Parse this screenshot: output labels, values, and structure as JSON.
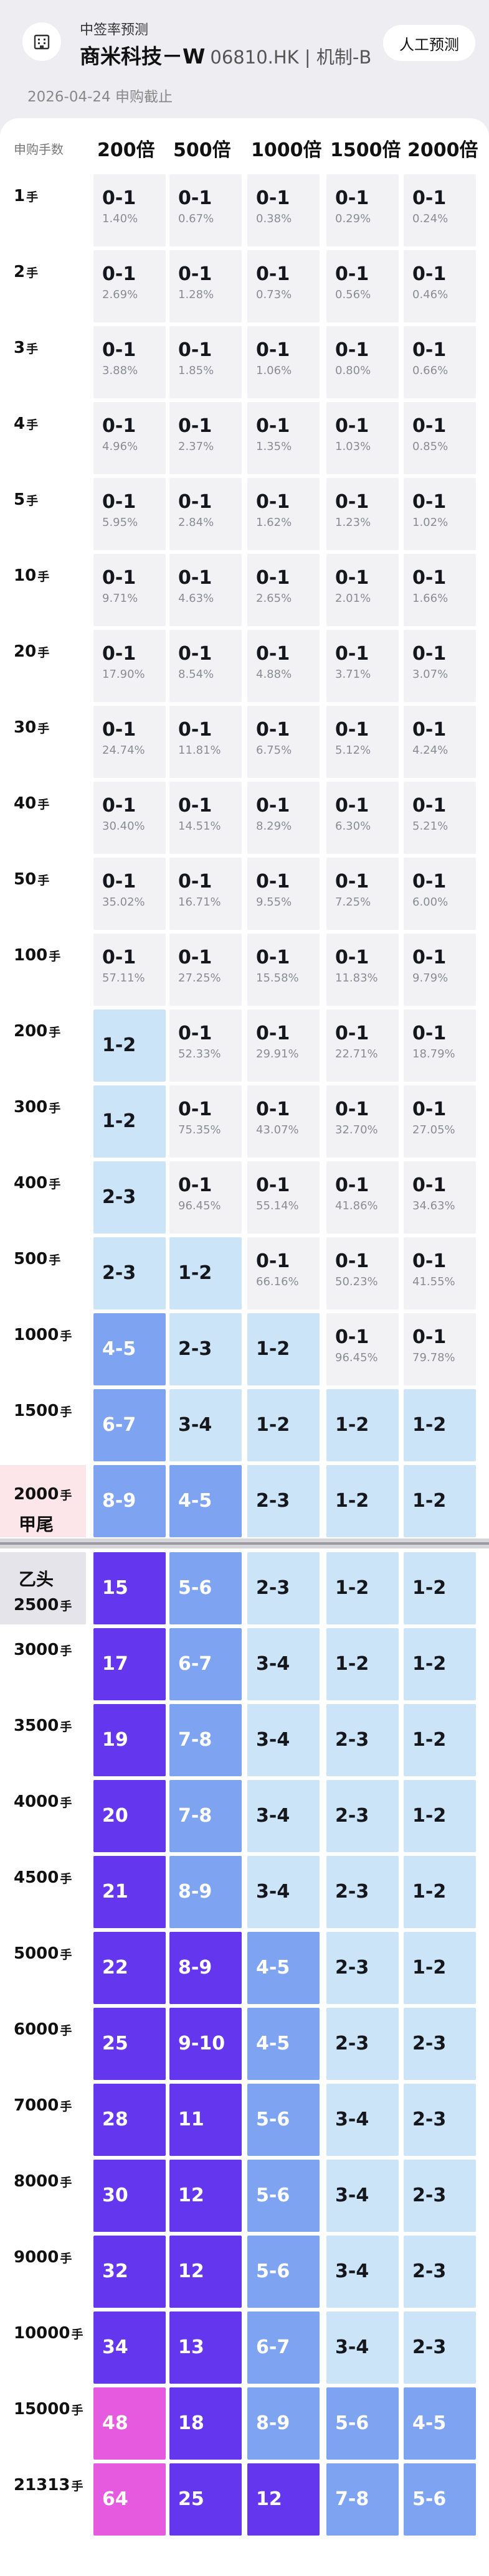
{
  "header": {
    "feature_name": "中签率预测",
    "stock_name": "商米科技－W",
    "stock_code": "06810.HK | 机制-B",
    "manual_button": "人工预测",
    "deadline": "2026-04-24 申购截止"
  },
  "table": {
    "corner_label": "申购手数",
    "multipliers": [
      "200倍",
      "500倍",
      "1000倍",
      "1500倍",
      "2000倍"
    ],
    "unit": "手",
    "group_a_tail": "甲尾",
    "group_b_head": "乙头",
    "rows": [
      {
        "lots": "1",
        "cells": [
          {
            "a": "0-1",
            "r": "1.40%"
          },
          {
            "a": "0-1",
            "r": "0.67%"
          },
          {
            "a": "0-1",
            "r": "0.38%"
          },
          {
            "a": "0-1",
            "r": "0.29%"
          },
          {
            "a": "0-1",
            "r": "0.24%"
          }
        ]
      },
      {
        "lots": "2",
        "cells": [
          {
            "a": "0-1",
            "r": "2.69%"
          },
          {
            "a": "0-1",
            "r": "1.28%"
          },
          {
            "a": "0-1",
            "r": "0.73%"
          },
          {
            "a": "0-1",
            "r": "0.56%"
          },
          {
            "a": "0-1",
            "r": "0.46%"
          }
        ]
      },
      {
        "lots": "3",
        "cells": [
          {
            "a": "0-1",
            "r": "3.88%"
          },
          {
            "a": "0-1",
            "r": "1.85%"
          },
          {
            "a": "0-1",
            "r": "1.06%"
          },
          {
            "a": "0-1",
            "r": "0.80%"
          },
          {
            "a": "0-1",
            "r": "0.66%"
          }
        ]
      },
      {
        "lots": "4",
        "cells": [
          {
            "a": "0-1",
            "r": "4.96%"
          },
          {
            "a": "0-1",
            "r": "2.37%"
          },
          {
            "a": "0-1",
            "r": "1.35%"
          },
          {
            "a": "0-1",
            "r": "1.03%"
          },
          {
            "a": "0-1",
            "r": "0.85%"
          }
        ]
      },
      {
        "lots": "5",
        "cells": [
          {
            "a": "0-1",
            "r": "5.95%"
          },
          {
            "a": "0-1",
            "r": "2.84%"
          },
          {
            "a": "0-1",
            "r": "1.62%"
          },
          {
            "a": "0-1",
            "r": "1.23%"
          },
          {
            "a": "0-1",
            "r": "1.02%"
          }
        ]
      },
      {
        "lots": "10",
        "cells": [
          {
            "a": "0-1",
            "r": "9.71%"
          },
          {
            "a": "0-1",
            "r": "4.63%"
          },
          {
            "a": "0-1",
            "r": "2.65%"
          },
          {
            "a": "0-1",
            "r": "2.01%"
          },
          {
            "a": "0-1",
            "r": "1.66%"
          }
        ]
      },
      {
        "lots": "20",
        "cells": [
          {
            "a": "0-1",
            "r": "17.90%"
          },
          {
            "a": "0-1",
            "r": "8.54%"
          },
          {
            "a": "0-1",
            "r": "4.88%"
          },
          {
            "a": "0-1",
            "r": "3.71%"
          },
          {
            "a": "0-1",
            "r": "3.07%"
          }
        ]
      },
      {
        "lots": "30",
        "cells": [
          {
            "a": "0-1",
            "r": "24.74%"
          },
          {
            "a": "0-1",
            "r": "11.81%"
          },
          {
            "a": "0-1",
            "r": "6.75%"
          },
          {
            "a": "0-1",
            "r": "5.12%"
          },
          {
            "a": "0-1",
            "r": "4.24%"
          }
        ]
      },
      {
        "lots": "40",
        "cells": [
          {
            "a": "0-1",
            "r": "30.40%"
          },
          {
            "a": "0-1",
            "r": "14.51%"
          },
          {
            "a": "0-1",
            "r": "8.29%"
          },
          {
            "a": "0-1",
            "r": "6.30%"
          },
          {
            "a": "0-1",
            "r": "5.21%"
          }
        ]
      },
      {
        "lots": "50",
        "cells": [
          {
            "a": "0-1",
            "r": "35.02%"
          },
          {
            "a": "0-1",
            "r": "16.71%"
          },
          {
            "a": "0-1",
            "r": "9.55%"
          },
          {
            "a": "0-1",
            "r": "7.25%"
          },
          {
            "a": "0-1",
            "r": "6.00%"
          }
        ]
      },
      {
        "lots": "100",
        "cells": [
          {
            "a": "0-1",
            "r": "57.11%"
          },
          {
            "a": "0-1",
            "r": "27.25%"
          },
          {
            "a": "0-1",
            "r": "15.58%"
          },
          {
            "a": "0-1",
            "r": "11.83%"
          },
          {
            "a": "0-1",
            "r": "9.79%"
          }
        ]
      },
      {
        "lots": "200",
        "cells": [
          {
            "a": "1-2",
            "r": ""
          },
          {
            "a": "0-1",
            "r": "52.33%"
          },
          {
            "a": "0-1",
            "r": "29.91%"
          },
          {
            "a": "0-1",
            "r": "22.71%"
          },
          {
            "a": "0-1",
            "r": "18.79%"
          }
        ]
      },
      {
        "lots": "300",
        "cells": [
          {
            "a": "1-2",
            "r": ""
          },
          {
            "a": "0-1",
            "r": "75.35%"
          },
          {
            "a": "0-1",
            "r": "43.07%"
          },
          {
            "a": "0-1",
            "r": "32.70%"
          },
          {
            "a": "0-1",
            "r": "27.05%"
          }
        ]
      },
      {
        "lots": "400",
        "cells": [
          {
            "a": "2-3",
            "r": ""
          },
          {
            "a": "0-1",
            "r": "96.45%"
          },
          {
            "a": "0-1",
            "r": "55.14%"
          },
          {
            "a": "0-1",
            "r": "41.86%"
          },
          {
            "a": "0-1",
            "r": "34.63%"
          }
        ]
      },
      {
        "lots": "500",
        "cells": [
          {
            "a": "2-3",
            "r": ""
          },
          {
            "a": "1-2",
            "r": ""
          },
          {
            "a": "0-1",
            "r": "66.16%"
          },
          {
            "a": "0-1",
            "r": "50.23%"
          },
          {
            "a": "0-1",
            "r": "41.55%"
          }
        ]
      },
      {
        "lots": "1000",
        "cells": [
          {
            "a": "4-5",
            "r": ""
          },
          {
            "a": "2-3",
            "r": ""
          },
          {
            "a": "1-2",
            "r": ""
          },
          {
            "a": "0-1",
            "r": "96.45%"
          },
          {
            "a": "0-1",
            "r": "79.78%"
          }
        ]
      },
      {
        "lots": "1500",
        "cells": [
          {
            "a": "6-7",
            "r": ""
          },
          {
            "a": "3-4",
            "r": ""
          },
          {
            "a": "1-2",
            "r": ""
          },
          {
            "a": "1-2",
            "r": ""
          },
          {
            "a": "1-2",
            "r": ""
          }
        ]
      },
      {
        "lots": "2000",
        "cells": [
          {
            "a": "8-9",
            "r": ""
          },
          {
            "a": "4-5",
            "r": ""
          },
          {
            "a": "2-3",
            "r": ""
          },
          {
            "a": "1-2",
            "r": ""
          },
          {
            "a": "1-2",
            "r": ""
          }
        ]
      },
      {
        "lots": "2500",
        "cells": [
          {
            "a": "15",
            "r": ""
          },
          {
            "a": "5-6",
            "r": ""
          },
          {
            "a": "2-3",
            "r": ""
          },
          {
            "a": "1-2",
            "r": ""
          },
          {
            "a": "1-2",
            "r": ""
          }
        ]
      },
      {
        "lots": "3000",
        "cells": [
          {
            "a": "17",
            "r": ""
          },
          {
            "a": "6-7",
            "r": ""
          },
          {
            "a": "3-4",
            "r": ""
          },
          {
            "a": "1-2",
            "r": ""
          },
          {
            "a": "1-2",
            "r": ""
          }
        ]
      },
      {
        "lots": "3500",
        "cells": [
          {
            "a": "19",
            "r": ""
          },
          {
            "a": "7-8",
            "r": ""
          },
          {
            "a": "3-4",
            "r": ""
          },
          {
            "a": "2-3",
            "r": ""
          },
          {
            "a": "1-2",
            "r": ""
          }
        ]
      },
      {
        "lots": "4000",
        "cells": [
          {
            "a": "20",
            "r": ""
          },
          {
            "a": "7-8",
            "r": ""
          },
          {
            "a": "3-4",
            "r": ""
          },
          {
            "a": "2-3",
            "r": ""
          },
          {
            "a": "1-2",
            "r": ""
          }
        ]
      },
      {
        "lots": "4500",
        "cells": [
          {
            "a": "21",
            "r": ""
          },
          {
            "a": "8-9",
            "r": ""
          },
          {
            "a": "3-4",
            "r": ""
          },
          {
            "a": "2-3",
            "r": ""
          },
          {
            "a": "1-2",
            "r": ""
          }
        ]
      },
      {
        "lots": "5000",
        "cells": [
          {
            "a": "22",
            "r": ""
          },
          {
            "a": "8-9",
            "r": ""
          },
          {
            "a": "4-5",
            "r": ""
          },
          {
            "a": "2-3",
            "r": ""
          },
          {
            "a": "1-2",
            "r": ""
          }
        ]
      },
      {
        "lots": "6000",
        "cells": [
          {
            "a": "25",
            "r": ""
          },
          {
            "a": "9-10",
            "r": ""
          },
          {
            "a": "4-5",
            "r": ""
          },
          {
            "a": "2-3",
            "r": ""
          },
          {
            "a": "2-3",
            "r": ""
          }
        ]
      },
      {
        "lots": "7000",
        "cells": [
          {
            "a": "28",
            "r": ""
          },
          {
            "a": "11",
            "r": ""
          },
          {
            "a": "5-6",
            "r": ""
          },
          {
            "a": "3-4",
            "r": ""
          },
          {
            "a": "2-3",
            "r": ""
          }
        ]
      },
      {
        "lots": "8000",
        "cells": [
          {
            "a": "30",
            "r": ""
          },
          {
            "a": "12",
            "r": ""
          },
          {
            "a": "5-6",
            "r": ""
          },
          {
            "a": "3-4",
            "r": ""
          },
          {
            "a": "2-3",
            "r": ""
          }
        ]
      },
      {
        "lots": "9000",
        "cells": [
          {
            "a": "32",
            "r": ""
          },
          {
            "a": "12",
            "r": ""
          },
          {
            "a": "5-6",
            "r": ""
          },
          {
            "a": "3-4",
            "r": ""
          },
          {
            "a": "2-3",
            "r": ""
          }
        ]
      },
      {
        "lots": "10000",
        "cells": [
          {
            "a": "34",
            "r": ""
          },
          {
            "a": "13",
            "r": ""
          },
          {
            "a": "6-7",
            "r": ""
          },
          {
            "a": "3-4",
            "r": ""
          },
          {
            "a": "2-3",
            "r": ""
          }
        ]
      },
      {
        "lots": "15000",
        "cells": [
          {
            "a": "48",
            "r": ""
          },
          {
            "a": "18",
            "r": ""
          },
          {
            "a": "8-9",
            "r": ""
          },
          {
            "a": "5-6",
            "r": ""
          },
          {
            "a": "4-5",
            "r": ""
          }
        ]
      },
      {
        "lots": "21313",
        "cells": [
          {
            "a": "64",
            "r": ""
          },
          {
            "a": "25",
            "r": ""
          },
          {
            "a": "12",
            "r": ""
          },
          {
            "a": "7-8",
            "r": ""
          },
          {
            "a": "5-6",
            "r": ""
          }
        ]
      }
    ]
  },
  "colors": {
    "page_bg": "#eeeef2",
    "low_prob": "#f2f2f5",
    "level_1": "#cbe4f8",
    "level_2": "#7ea4f1",
    "level_3": "#6436ee",
    "level_4": "#e65ae0",
    "group_a_tail_bg": "#fde6ea",
    "group_b_head_bg": "#e4e4ea",
    "divider": "#9a9aa3"
  },
  "cell_levels": [
    [
      0,
      0,
      0,
      0,
      0
    ],
    [
      0,
      0,
      0,
      0,
      0
    ],
    [
      0,
      0,
      0,
      0,
      0
    ],
    [
      0,
      0,
      0,
      0,
      0
    ],
    [
      0,
      0,
      0,
      0,
      0
    ],
    [
      0,
      0,
      0,
      0,
      0
    ],
    [
      0,
      0,
      0,
      0,
      0
    ],
    [
      0,
      0,
      0,
      0,
      0
    ],
    [
      0,
      0,
      0,
      0,
      0
    ],
    [
      0,
      0,
      0,
      0,
      0
    ],
    [
      0,
      0,
      0,
      0,
      0
    ],
    [
      1,
      0,
      0,
      0,
      0
    ],
    [
      1,
      0,
      0,
      0,
      0
    ],
    [
      1,
      0,
      0,
      0,
      0
    ],
    [
      1,
      1,
      0,
      0,
      0
    ],
    [
      2,
      1,
      1,
      0,
      0
    ],
    [
      2,
      1,
      1,
      1,
      1
    ],
    [
      2,
      2,
      1,
      1,
      1
    ],
    [
      3,
      2,
      1,
      1,
      1
    ],
    [
      3,
      2,
      1,
      1,
      1
    ],
    [
      3,
      2,
      1,
      1,
      1
    ],
    [
      3,
      2,
      1,
      1,
      1
    ],
    [
      3,
      2,
      1,
      1,
      1
    ],
    [
      3,
      3,
      2,
      1,
      1
    ],
    [
      3,
      3,
      2,
      1,
      1
    ],
    [
      3,
      3,
      2,
      1,
      1
    ],
    [
      3,
      3,
      2,
      1,
      1
    ],
    [
      3,
      3,
      2,
      1,
      1
    ],
    [
      3,
      3,
      2,
      1,
      1
    ],
    [
      4,
      3,
      2,
      2,
      2
    ],
    [
      4,
      3,
      3,
      2,
      2
    ]
  ]
}
